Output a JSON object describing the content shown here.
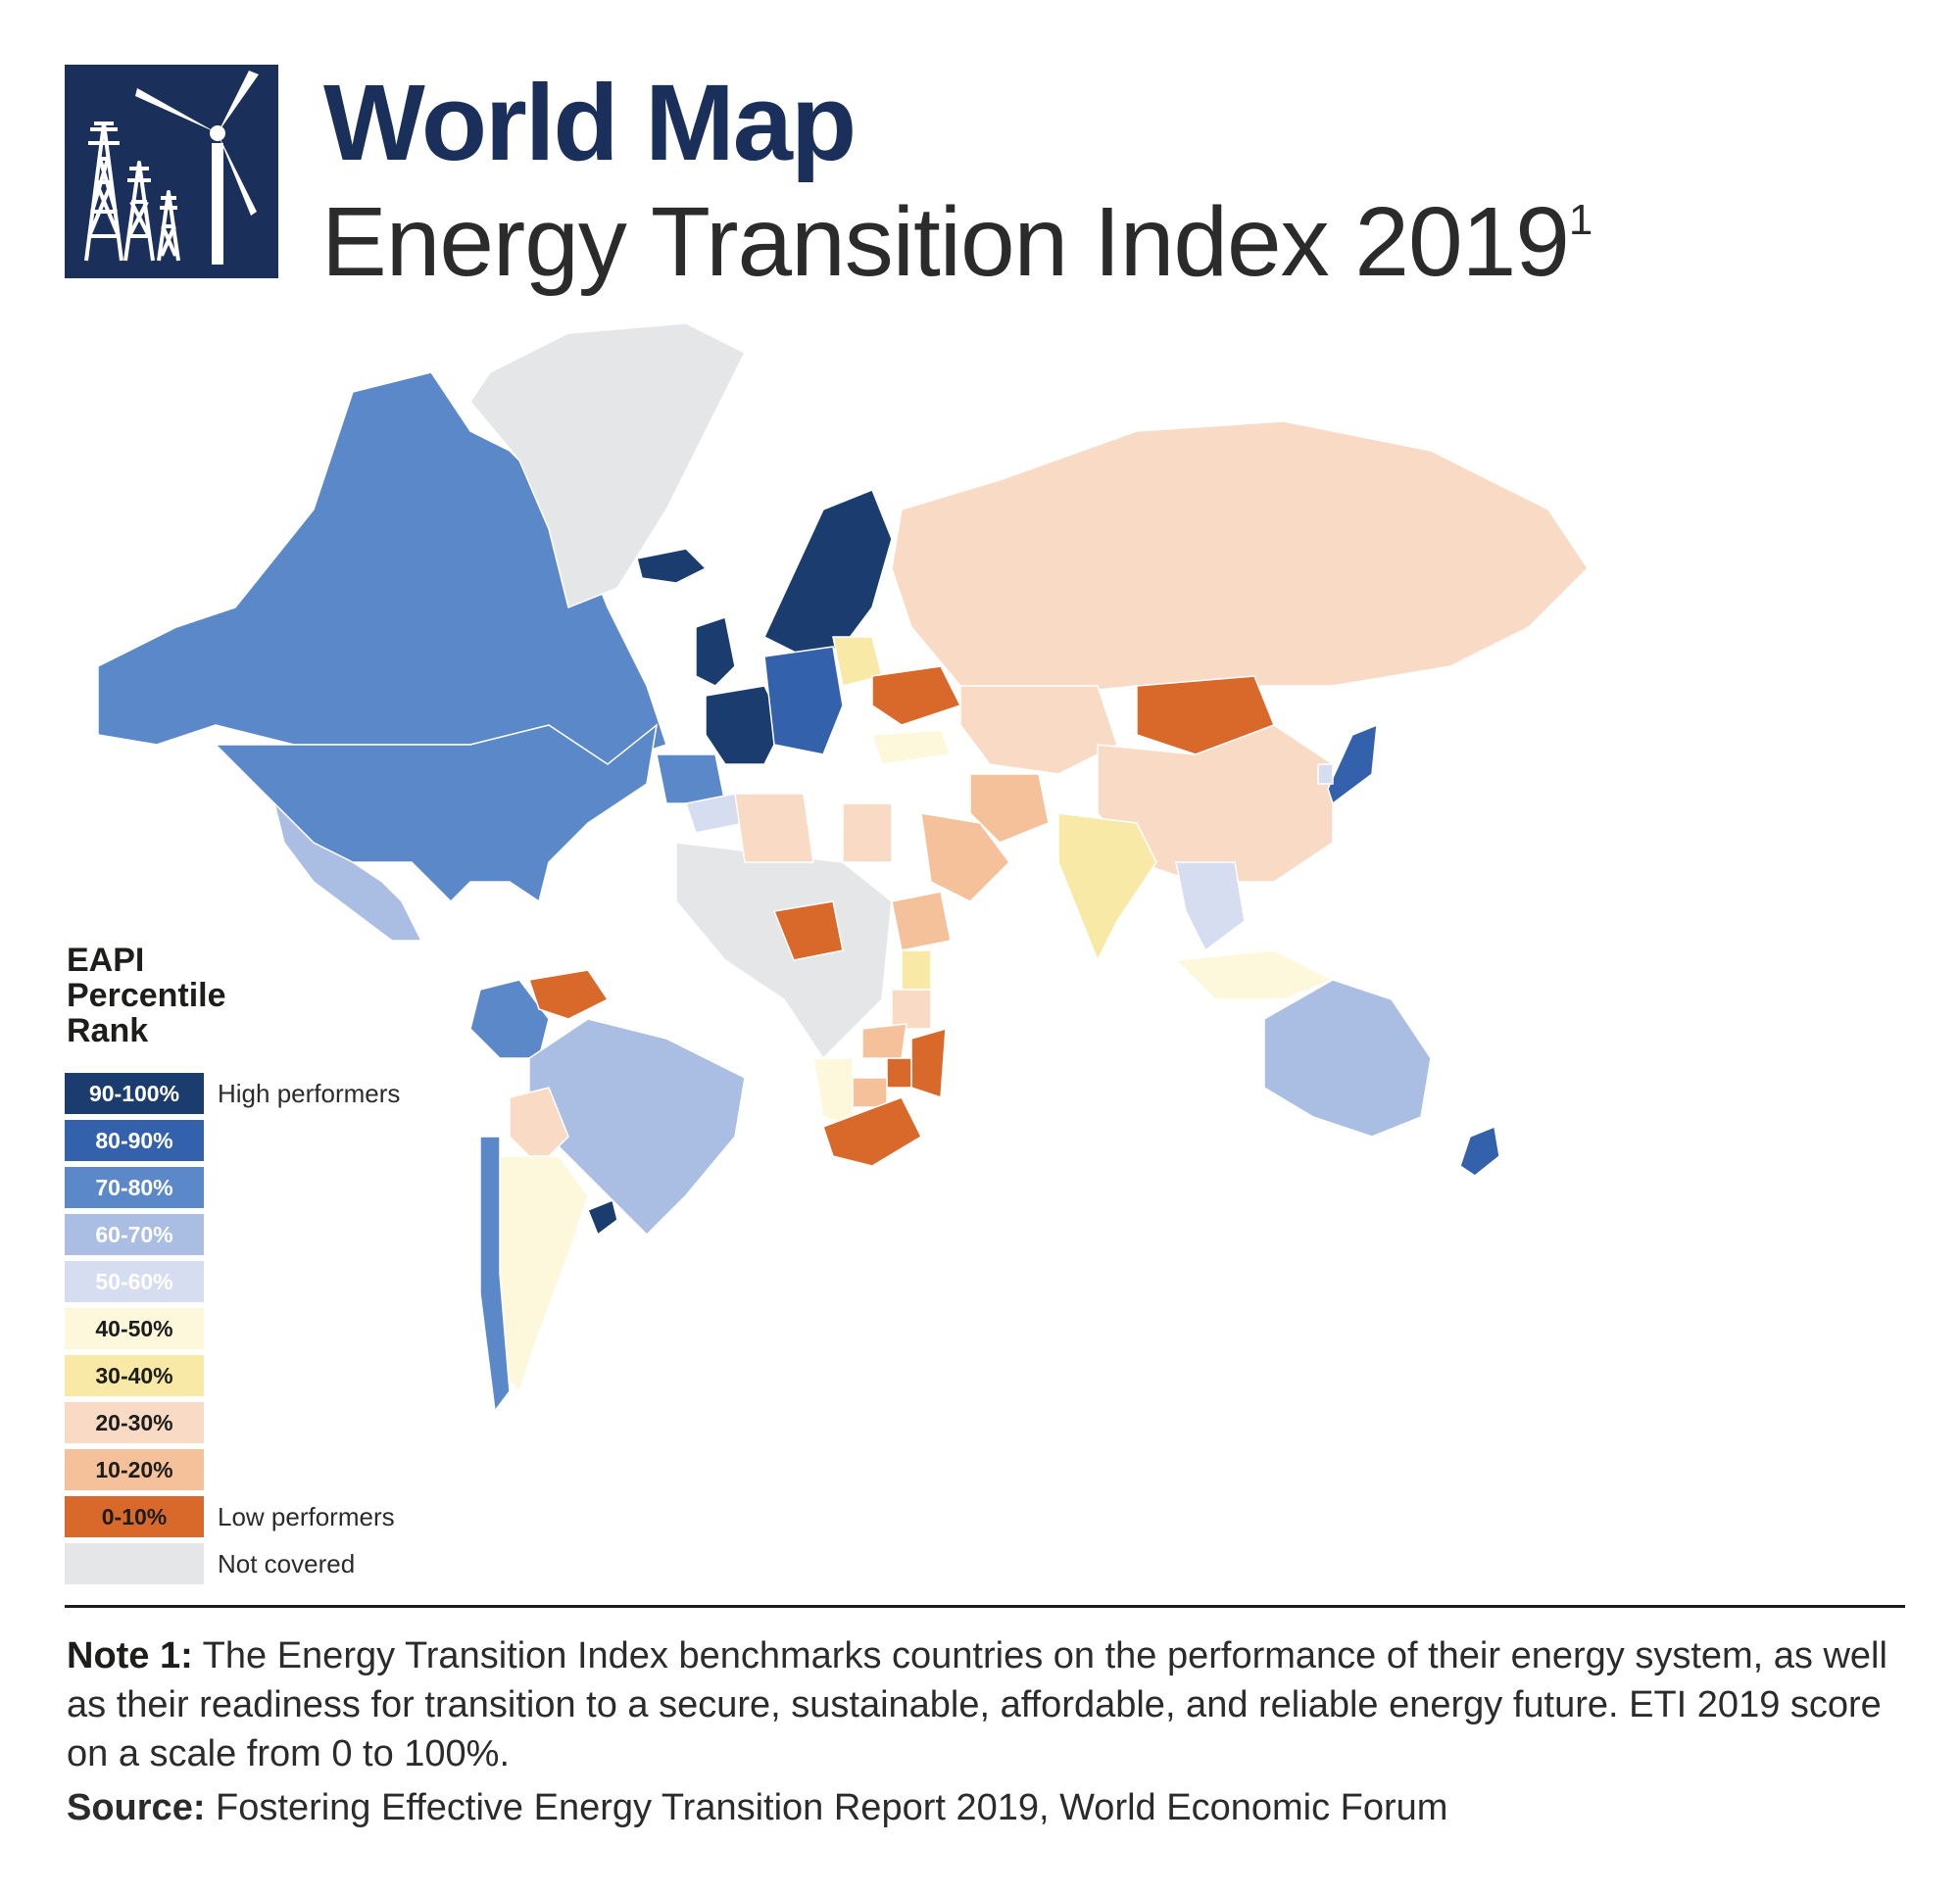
{
  "header": {
    "title": "World Map",
    "subtitle": "Energy Transition Index 2019",
    "subtitle_sup": "1",
    "logo_icon": "power-tower-wind-turbine-icon"
  },
  "legend": {
    "title_lines": [
      "EAPI",
      "Percentile",
      "Rank"
    ],
    "items": [
      {
        "label": "90-100%",
        "color": "#1b3c6e",
        "text_color": "#ffffff",
        "note": "High performers"
      },
      {
        "label": "80-90%",
        "color": "#3461ac",
        "text_color": "#ffffff",
        "note": ""
      },
      {
        "label": "70-80%",
        "color": "#5b88c8",
        "text_color": "#ffffff",
        "note": ""
      },
      {
        "label": "60-70%",
        "color": "#aabde2",
        "text_color": "#ffffff",
        "note": ""
      },
      {
        "label": "50-60%",
        "color": "#d6ddf0",
        "text_color": "#ffffff",
        "note": ""
      },
      {
        "label": "40-50%",
        "color": "#fdf7dc",
        "text_color": "#1d1d1b",
        "note": ""
      },
      {
        "label": "30-40%",
        "color": "#f8eaa6",
        "text_color": "#1d1d1b",
        "note": ""
      },
      {
        "label": "20-30%",
        "color": "#f9dac4",
        "text_color": "#1d1d1b",
        "note": ""
      },
      {
        "label": "10-20%",
        "color": "#f5c19a",
        "text_color": "#1d1d1b",
        "note": ""
      },
      {
        "label": "0-10%",
        "color": "#d8692b",
        "text_color": "#1d1d1b",
        "note": "Low performers"
      },
      {
        "label": "",
        "color": "#e5e6e8",
        "text_color": "#1d1d1b",
        "note": "Not covered"
      }
    ]
  },
  "map": {
    "not_covered_color": "#e5e6e8",
    "regions": [
      {
        "name": "Canada",
        "band": "70-80%"
      },
      {
        "name": "United States",
        "band": "70-80%"
      },
      {
        "name": "Greenland",
        "band": "not covered"
      },
      {
        "name": "Mexico",
        "band": "60-70%"
      },
      {
        "name": "Colombia",
        "band": "70-80%"
      },
      {
        "name": "Venezuela",
        "band": "0-10%"
      },
      {
        "name": "Brazil",
        "band": "60-70%"
      },
      {
        "name": "Bolivia",
        "band": "20-30%"
      },
      {
        "name": "Argentina",
        "band": "40-50%"
      },
      {
        "name": "Chile",
        "band": "70-80%"
      },
      {
        "name": "Uruguay",
        "band": "90-100%"
      },
      {
        "name": "Iceland",
        "band": "90-100%"
      },
      {
        "name": "Scandinavia",
        "band": "90-100%"
      },
      {
        "name": "United Kingdom",
        "band": "90-100%"
      },
      {
        "name": "France",
        "band": "90-100%"
      },
      {
        "name": "Iberia",
        "band": "70-80%"
      },
      {
        "name": "Central Europe",
        "band": "80-90%"
      },
      {
        "name": "Poland",
        "band": "30-40%"
      },
      {
        "name": "Ukraine",
        "band": "0-10%"
      },
      {
        "name": "Russia",
        "band": "20-30%"
      },
      {
        "name": "Kazakhstan / Central Asia",
        "band": "20-30%"
      },
      {
        "name": "Mongolia",
        "band": "0-10%"
      },
      {
        "name": "China",
        "band": "20-30%"
      },
      {
        "name": "India",
        "band": "30-40%"
      },
      {
        "name": "Iran",
        "band": "10-20%"
      },
      {
        "name": "Saudi Arabia",
        "band": "10-20%"
      },
      {
        "name": "Turkey",
        "band": "40-50%"
      },
      {
        "name": "Japan",
        "band": "80-90%"
      },
      {
        "name": "South Korea",
        "band": "50-60%"
      },
      {
        "name": "Southeast Asia",
        "band": "50-60%"
      },
      {
        "name": "Indonesia",
        "band": "40-50%"
      },
      {
        "name": "Australia",
        "band": "60-70%"
      },
      {
        "name": "New Zealand",
        "band": "80-90%"
      },
      {
        "name": "Morocco",
        "band": "50-60%"
      },
      {
        "name": "Algeria",
        "band": "20-30%"
      },
      {
        "name": "Egypt",
        "band": "20-30%"
      },
      {
        "name": "Nigeria",
        "band": "0-10%"
      },
      {
        "name": "Ethiopia",
        "band": "10-20%"
      },
      {
        "name": "Kenya",
        "band": "30-40%"
      },
      {
        "name": "Tanzania",
        "band": "20-30%"
      },
      {
        "name": "Mozambique",
        "band": "0-10%"
      },
      {
        "name": "Zimbabwe",
        "band": "0-10%"
      },
      {
        "name": "Zambia",
        "band": "10-20%"
      },
      {
        "name": "Botswana",
        "band": "10-20%"
      },
      {
        "name": "Namibia",
        "band": "40-50%"
      },
      {
        "name": "South Africa",
        "band": "0-10%"
      },
      {
        "name": "Africa (other)",
        "band": "not covered"
      }
    ]
  },
  "footer": {
    "note_label": "Note 1:",
    "note_text": " The Energy Transition Index benchmarks countries on the performance of their energy system, as well as their readiness for transition to a secure, sustainable, affordable, and reliable energy future. ETI 2019 score on a scale from 0 to 100%.",
    "source_label": "Source:",
    "source_text": " Fostering Effective Energy Transition Report 2019, World Economic Forum"
  }
}
